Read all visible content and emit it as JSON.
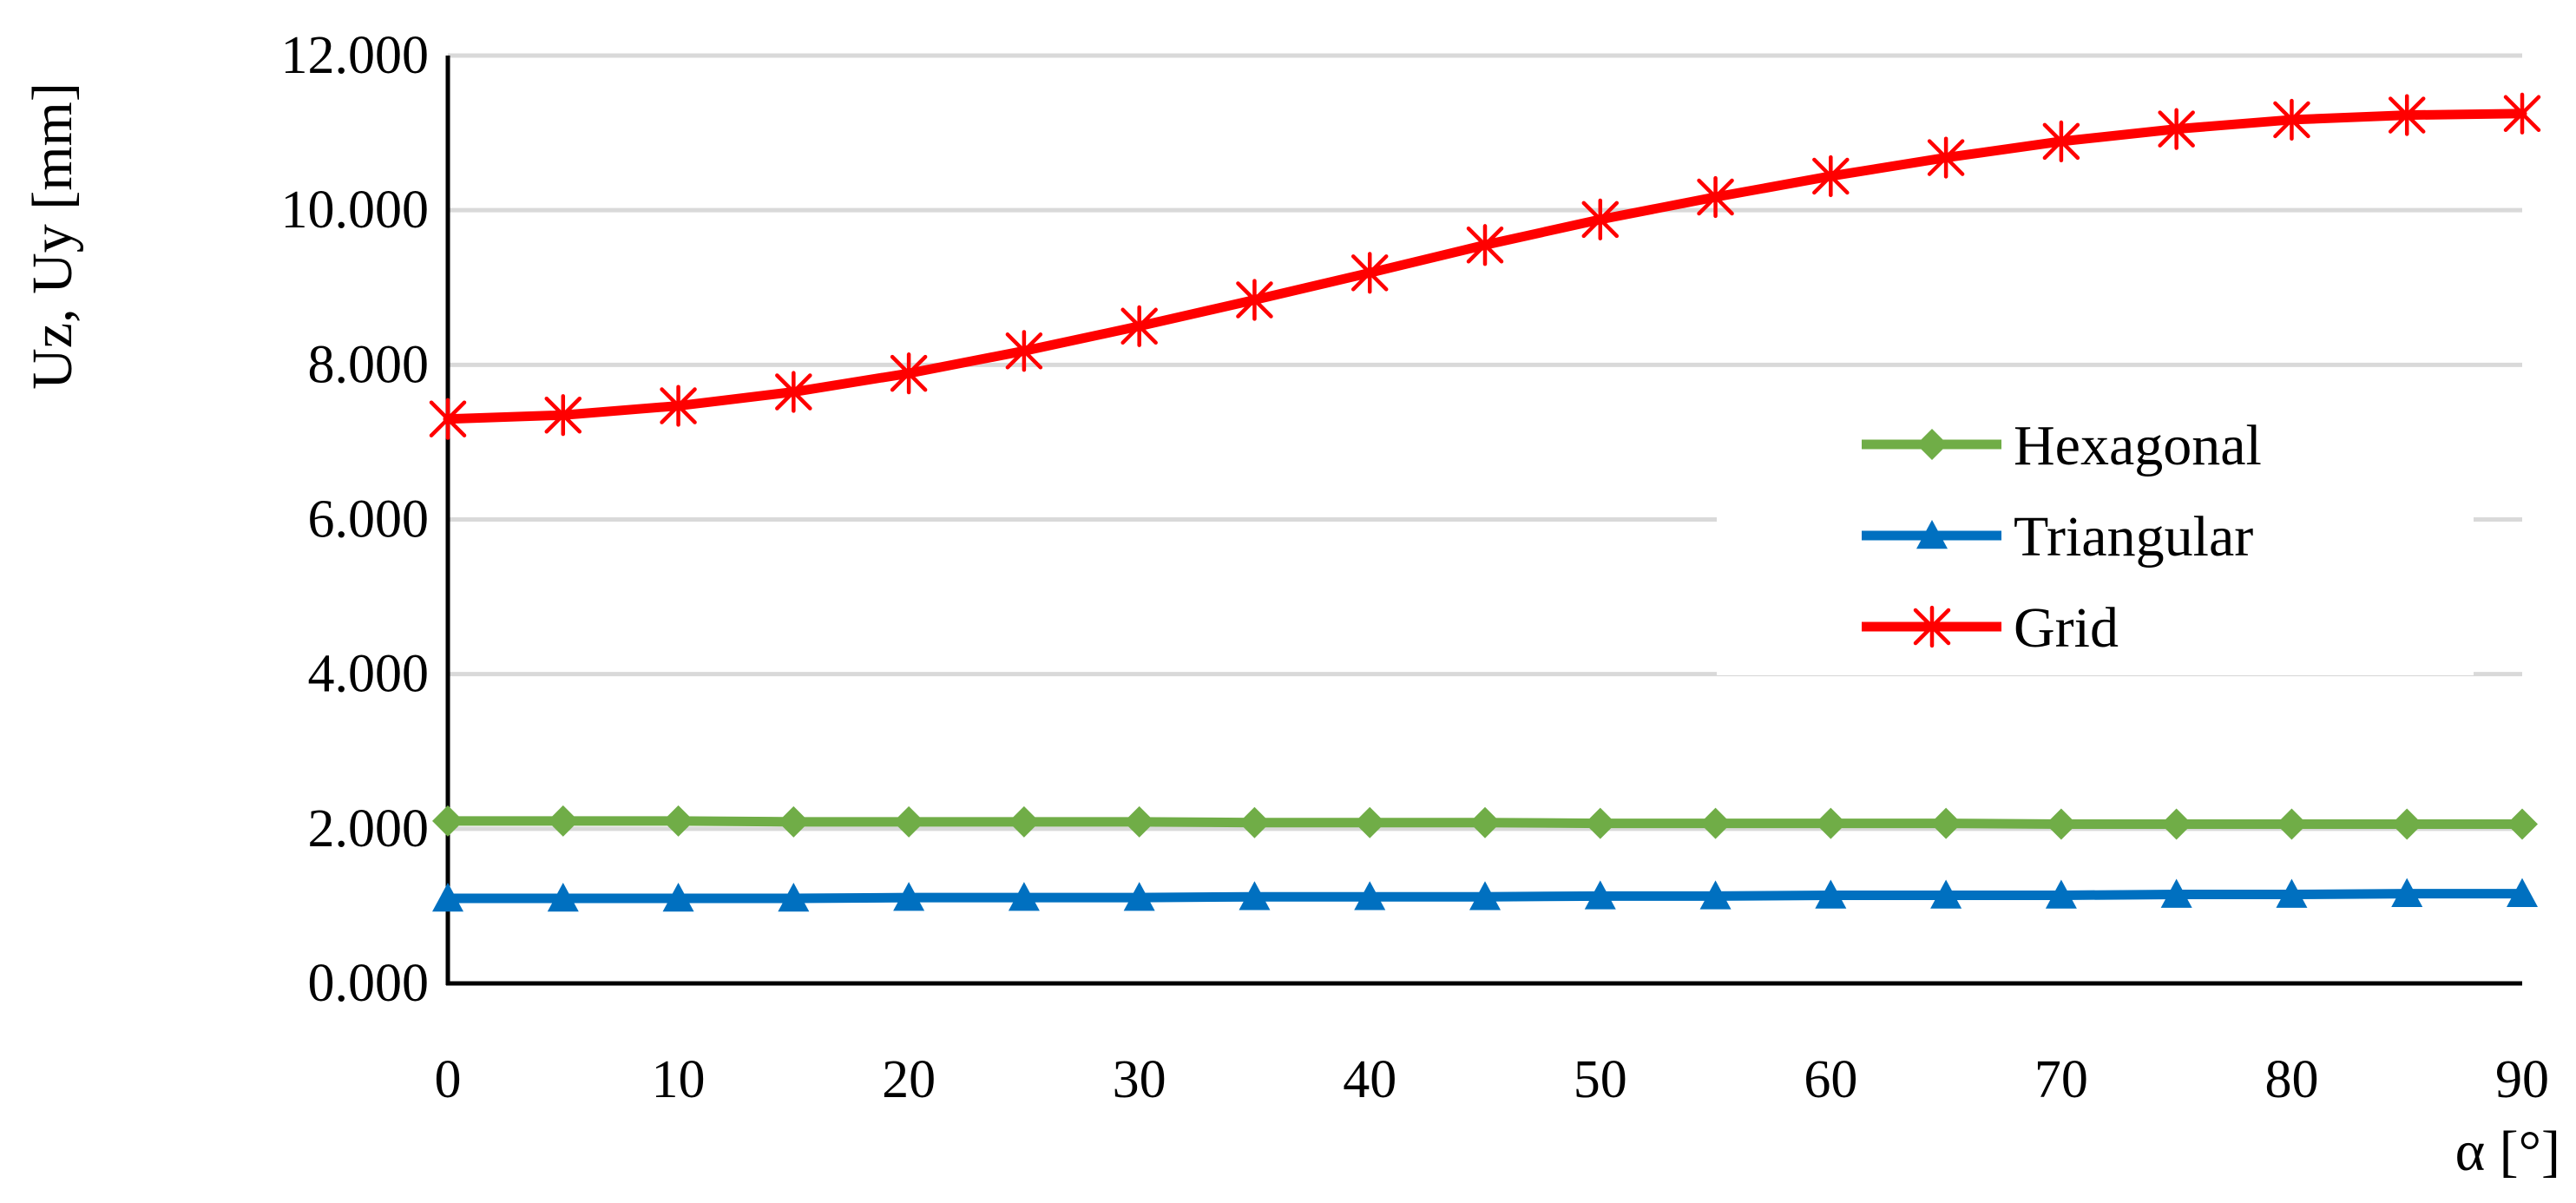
{
  "chart_data": {
    "type": "line",
    "title": "",
    "xlabel": "α [°]",
    "ylabel": "Uz, Uy [mm]",
    "xlim": [
      0,
      90
    ],
    "ylim": [
      0,
      12
    ],
    "grid": true,
    "legend_position": "right",
    "x": [
      0,
      5,
      10,
      15,
      20,
      25,
      30,
      35,
      40,
      45,
      50,
      55,
      60,
      65,
      70,
      75,
      80,
      85,
      90
    ],
    "x_ticks": [
      "0",
      "10",
      "20",
      "30",
      "40",
      "50",
      "60",
      "70",
      "80",
      "90"
    ],
    "y_ticks": [
      "0.000",
      "2.000",
      "4.000",
      "6.000",
      "8.000",
      "10.000",
      "12.000"
    ],
    "series": [
      {
        "name": "Hexagonal",
        "color": "#70AD47",
        "marker": "diamond",
        "values": [
          2.1,
          2.1,
          2.1,
          2.09,
          2.09,
          2.09,
          2.09,
          2.08,
          2.08,
          2.08,
          2.07,
          2.07,
          2.07,
          2.07,
          2.06,
          2.06,
          2.06,
          2.06,
          2.06
        ]
      },
      {
        "name": "Triangular",
        "color": "#0070C0",
        "marker": "triangle",
        "values": [
          1.1,
          1.1,
          1.1,
          1.1,
          1.11,
          1.11,
          1.11,
          1.12,
          1.12,
          1.12,
          1.13,
          1.13,
          1.14,
          1.14,
          1.14,
          1.15,
          1.15,
          1.16,
          1.16
        ]
      },
      {
        "name": "Grid",
        "color": "#FF0000",
        "marker": "asterisk",
        "values": [
          7.3,
          7.35,
          7.47,
          7.65,
          7.89,
          8.18,
          8.5,
          8.84,
          9.19,
          9.55,
          9.88,
          10.17,
          10.44,
          10.68,
          10.89,
          11.05,
          11.17,
          11.23,
          11.25
        ]
      }
    ]
  }
}
